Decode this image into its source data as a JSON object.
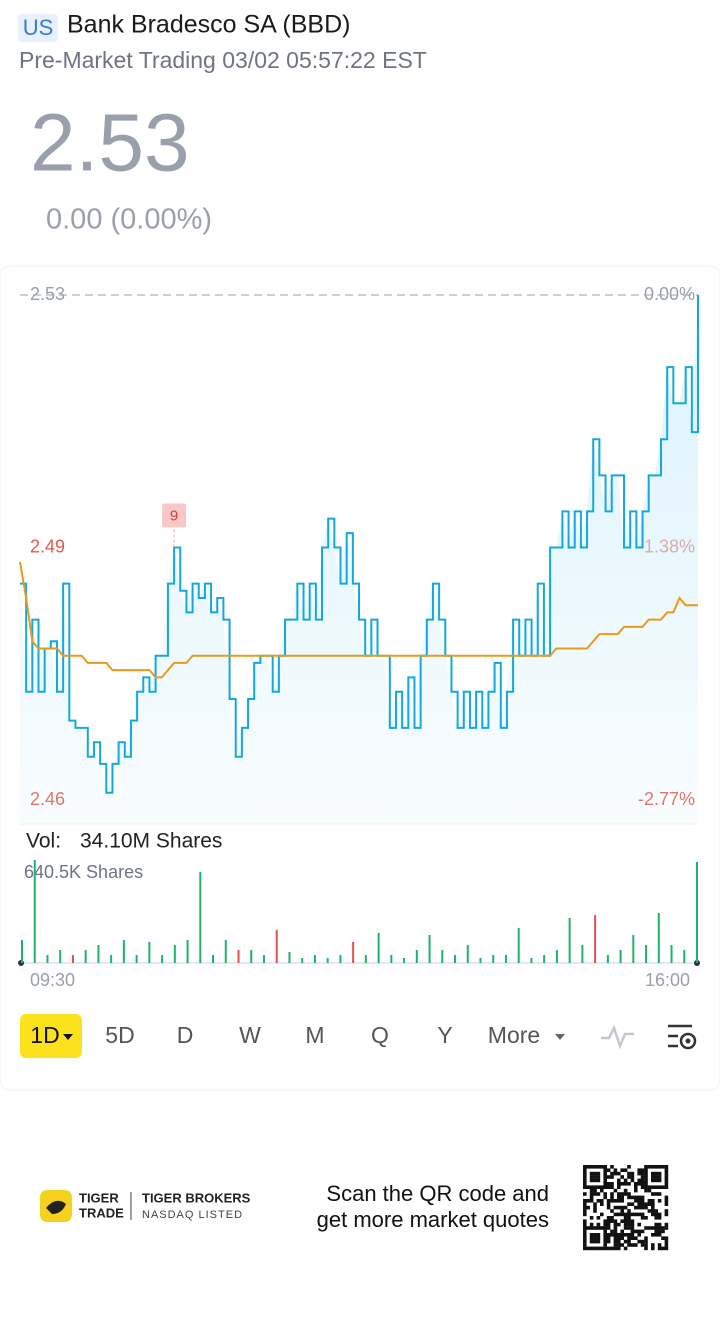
{
  "header": {
    "market": "US",
    "title": "Bank Bradesco SA (BBD)",
    "status": "Pre-Market Trading 03/02 05:57:22 EST",
    "price": "2.53",
    "change": "0.00 (0.00%)"
  },
  "chart_data": [
    {
      "type": "line",
      "ylim": [
        2.46,
        2.53
      ],
      "yticks": [
        2.53,
        {
          "value": 2.495,
          "label": "2.49"
        },
        2.46
      ],
      "y2lim": [
        -2.77,
        0
      ],
      "y2ticks": [
        {
          "value": 0,
          "label": "0.00%"
        },
        {
          "value": -1.385,
          "label": "-1.38%"
        },
        {
          "value": -2.77,
          "label": "-2.77%"
        }
      ],
      "annotation": "9",
      "series": [
        {
          "color": "#14a8dc",
          "values": [
            2.49,
            2.475,
            2.485,
            2.475,
            2.481,
            2.482,
            2.475,
            2.49,
            2.471,
            2.47,
            2.47,
            2.466,
            2.468,
            2.465,
            2.461,
            2.465,
            2.468,
            2.466,
            2.471,
            2.475,
            2.477,
            2.475,
            2.48,
            2.48,
            2.49,
            2.495,
            2.489,
            2.486,
            2.49,
            2.488,
            2.49,
            2.486,
            2.488,
            2.485,
            2.474,
            2.466,
            2.47,
            2.474,
            2.479,
            2.48,
            2.48,
            2.475,
            2.48,
            2.485,
            2.485,
            2.49,
            2.485,
            2.49,
            2.485,
            2.495,
            2.499,
            2.495,
            2.49,
            2.497,
            2.49,
            2.485,
            2.48,
            2.485,
            2.48,
            2.48,
            2.47,
            2.475,
            2.47,
            2.477,
            2.47,
            2.48,
            2.485,
            2.49,
            2.485,
            2.48,
            2.475,
            2.47,
            2.475,
            2.47,
            2.475,
            2.47,
            2.475,
            2.479,
            2.47,
            2.475,
            2.485,
            2.48,
            2.485,
            2.48,
            2.49,
            2.48,
            2.495,
            2.495,
            2.5,
            2.495,
            2.5,
            2.495,
            2.5,
            2.51,
            2.505,
            2.5,
            2.505,
            2.505,
            2.495,
            2.5,
            2.495,
            2.5,
            2.505,
            2.505,
            2.51,
            2.52,
            2.515,
            2.515,
            2.52,
            2.511,
            2.53
          ]
        },
        {
          "color": "#e89a1c",
          "values": [
            2.493,
            2.488,
            2.482,
            2.481,
            2.481,
            2.481,
            2.481,
            2.48,
            2.48,
            2.48,
            2.48,
            2.479,
            2.479,
            2.479,
            2.479,
            2.478,
            2.478,
            2.478,
            2.478,
            2.478,
            2.478,
            2.478,
            2.477,
            2.477,
            2.478,
            2.479,
            2.479,
            2.479,
            2.48,
            2.48,
            2.48,
            2.48,
            2.48,
            2.48,
            2.48,
            2.48,
            2.48,
            2.48,
            2.48,
            2.48,
            2.48,
            2.48,
            2.48,
            2.48,
            2.48,
            2.48,
            2.48,
            2.48,
            2.48,
            2.48,
            2.48,
            2.48,
            2.48,
            2.48,
            2.48,
            2.48,
            2.48,
            2.48,
            2.48,
            2.48,
            2.48,
            2.48,
            2.48,
            2.48,
            2.48,
            2.48,
            2.48,
            2.48,
            2.48,
            2.48,
            2.48,
            2.48,
            2.48,
            2.48,
            2.48,
            2.48,
            2.48,
            2.48,
            2.48,
            2.48,
            2.48,
            2.48,
            2.48,
            2.48,
            2.48,
            2.48,
            2.48,
            2.481,
            2.481,
            2.481,
            2.481,
            2.481,
            2.481,
            2.482,
            2.483,
            2.483,
            2.483,
            2.483,
            2.484,
            2.484,
            2.484,
            2.484,
            2.485,
            2.485,
            2.485,
            2.486,
            2.486,
            2.488,
            2.487,
            2.487,
            2.487
          ]
        }
      ]
    },
    {
      "type": "bar",
      "volume_label": "Vol:",
      "volume_total": "34.10M Shares",
      "ylim": [
        0,
        640.5
      ],
      "yticks": [
        {
          "value": 640.5,
          "label": "640.5K Shares"
        }
      ],
      "categories": [
        "09:30",
        null,
        null,
        null,
        null,
        null,
        null,
        null,
        null,
        null,
        null,
        null,
        null,
        null,
        null,
        null,
        null,
        null,
        null,
        null,
        null,
        null,
        null,
        null,
        null,
        null,
        null,
        null,
        null,
        null,
        null,
        null,
        null,
        null,
        null,
        null,
        null,
        null,
        null,
        null,
        null,
        null,
        null,
        null,
        null,
        null,
        null,
        null,
        null,
        null,
        null,
        null,
        null,
        "16:00"
      ],
      "values": [
        143,
        640.5,
        50,
        81,
        50,
        81,
        112,
        50,
        143,
        50,
        131,
        50,
        112,
        143,
        566,
        50,
        143,
        81,
        81,
        50,
        205,
        68,
        31,
        50,
        31,
        50,
        131,
        50,
        187,
        50,
        31,
        81,
        174,
        81,
        50,
        112,
        31,
        50,
        50,
        218,
        31,
        50,
        81,
        280,
        112,
        299,
        50,
        81,
        174,
        112,
        311,
        112,
        81,
        628
      ],
      "colors": [
        "#1db36b",
        "#1db36b",
        "#1db36b",
        "#1db36b",
        "#e05050",
        "#1db36b",
        "#1db36b",
        "#1db36b",
        "#1db36b",
        "#1db36b",
        "#1db36b",
        "#1db36b",
        "#1db36b",
        "#1db36b",
        "#1db36b",
        "#1db36b",
        "#1db36b",
        "#e05050",
        "#1db36b",
        "#1db36b",
        "#e05050",
        "#1db36b",
        "#1db36b",
        "#1db36b",
        "#1db36b",
        "#1db36b",
        "#e05050",
        "#1db36b",
        "#1db36b",
        "#1db36b",
        "#1db36b",
        "#1db36b",
        "#1db36b",
        "#1db36b",
        "#1db36b",
        "#1db36b",
        "#1db36b",
        "#1db36b",
        "#1db36b",
        "#1db36b",
        "#1db36b",
        "#1db36b",
        "#1db36b",
        "#1db36b",
        "#1db36b",
        "#e05050",
        "#1db36b",
        "#1db36b",
        "#1db36b",
        "#1db36b",
        "#1db36b",
        "#1db36b",
        "#1db36b",
        "#1db36b"
      ]
    }
  ],
  "tabs": [
    "1D",
    "5D",
    "D",
    "W",
    "M",
    "Q",
    "Y",
    "More"
  ],
  "footer": {
    "brand_top": "TIGER",
    "brand_bottom": "TRADE",
    "broker": "TIGER BROKERS",
    "listing": "NASDAQ LISTED",
    "cta_line1": "Scan the QR code and",
    "cta_line2": "get more market quotes"
  }
}
